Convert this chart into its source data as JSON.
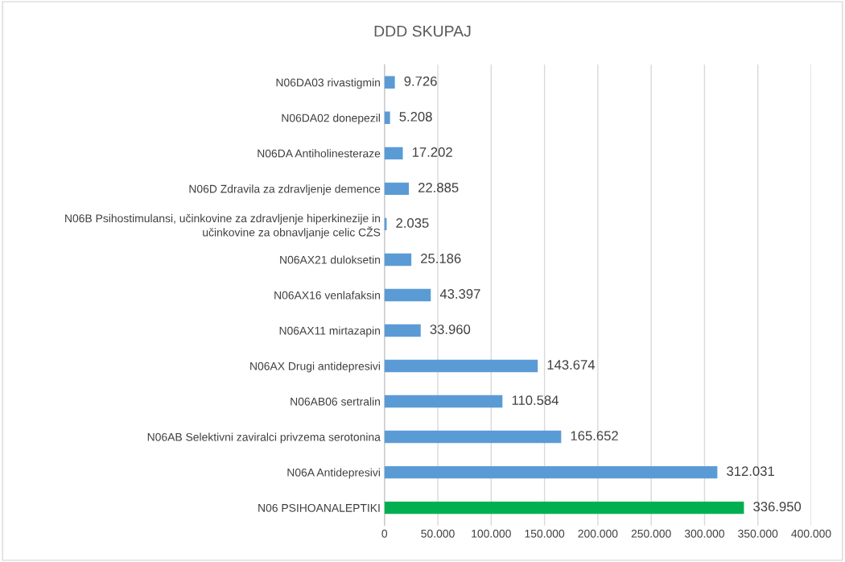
{
  "chart_data": {
    "type": "bar",
    "orientation": "horizontal",
    "title": "DDD SKUPAJ",
    "categories": [
      "N06DA03 rivastigmin",
      "N06DA02 donepezil",
      "N06DA Antiholinesteraze",
      "N06D Zdravila za zdravljenje demence",
      "N06B Psihostimulansi, učinkovine za zdravljenje hiperkinezije in\nučinkovine za obnavljanje celic CŽS",
      "N06AX21 duloksetin",
      "N06AX16 venlafaksin",
      "N06AX11 mirtazapin",
      "N06AX Drugi antidepresivi",
      "N06AB06 sertralin",
      "N06AB Selektivni zaviralci privzema serotonina",
      "N06A Antidepresivi",
      "N06 PSIHOANALEPTIKI"
    ],
    "values": [
      9726,
      5208,
      17202,
      22885,
      2035,
      25186,
      43397,
      33960,
      143674,
      110584,
      165652,
      312031,
      336950
    ],
    "value_labels": [
      "9.726",
      "5.208",
      "17.202",
      "22.885",
      "2.035",
      "25.186",
      "43.397",
      "33.960",
      "143.674",
      "110.584",
      "165.652",
      "312.031",
      "336.950"
    ],
    "colors": [
      "#5b9bd5",
      "#5b9bd5",
      "#5b9bd5",
      "#5b9bd5",
      "#5b9bd5",
      "#5b9bd5",
      "#5b9bd5",
      "#5b9bd5",
      "#5b9bd5",
      "#5b9bd5",
      "#5b9bd5",
      "#5b9bd5",
      "#00b050"
    ],
    "xlim": [
      0,
      400000
    ],
    "xticks": [
      0,
      {
        "value": 50000,
        "label": "50.000"
      },
      {
        "value": 100000,
        "label": "100.000"
      },
      {
        "value": 150000,
        "label": "150.000"
      },
      {
        "value": 200000,
        "label": "200.000"
      },
      {
        "value": 250000,
        "label": "250.000"
      },
      {
        "value": 300000,
        "label": "300.000"
      },
      {
        "value": 350000,
        "label": "350.000"
      },
      {
        "value": 400000,
        "label": "400.000"
      }
    ],
    "grid": "x"
  }
}
